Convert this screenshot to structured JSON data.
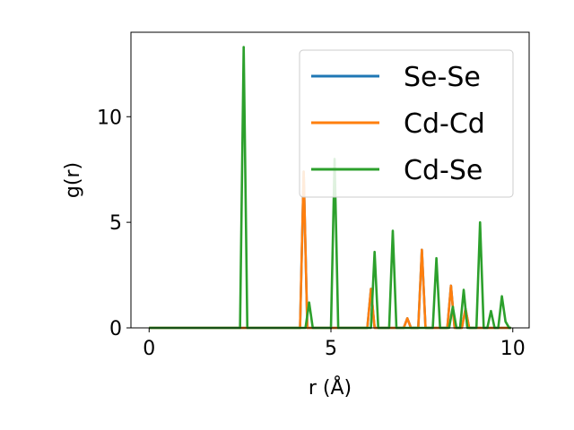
{
  "chart_data": {
    "type": "line",
    "xlabel": "r (Å)",
    "ylabel": "g(r)",
    "xlim": [
      -0.5,
      10.45
    ],
    "ylim": [
      0,
      14
    ],
    "xticks": [
      0,
      5,
      10
    ],
    "yticks": [
      0,
      5,
      10
    ],
    "grid": false,
    "legend_position": "top-right",
    "series": [
      {
        "name": "Se-Se",
        "color": "#1f77b4",
        "x": [
          0,
          4.15,
          4.25,
          4.35,
          6.0,
          6.1,
          6.2,
          7.0,
          7.1,
          7.2,
          7.4,
          7.5,
          7.6,
          8.2,
          8.3,
          8.4,
          8.6,
          8.7,
          8.8,
          9.95
        ],
        "y": [
          0,
          0,
          7.4,
          0,
          0,
          1.85,
          0,
          0,
          0.45,
          0,
          0,
          3.7,
          0,
          0,
          2.0,
          0,
          0,
          0.9,
          0,
          0
        ]
      },
      {
        "name": "Cd-Cd",
        "color": "#ff7f0e",
        "x": [
          0,
          4.15,
          4.25,
          4.35,
          6.0,
          6.1,
          6.2,
          7.0,
          7.1,
          7.2,
          7.4,
          7.5,
          7.6,
          8.2,
          8.3,
          8.4,
          8.6,
          8.7,
          8.8,
          9.95
        ],
        "y": [
          0,
          0,
          7.4,
          0,
          0,
          1.85,
          0,
          0,
          0.45,
          0,
          0,
          3.7,
          0,
          0,
          2.0,
          0,
          0,
          0.9,
          0,
          0
        ]
      },
      {
        "name": "Cd-Se",
        "color": "#2ca02c",
        "x": [
          0,
          2.5,
          2.6,
          2.7,
          4.3,
          4.4,
          4.5,
          5.0,
          5.1,
          5.2,
          6.1,
          6.2,
          6.3,
          6.6,
          6.7,
          6.8,
          7.8,
          7.9,
          8.0,
          8.25,
          8.35,
          8.45,
          8.55,
          8.65,
          8.75,
          9.0,
          9.1,
          9.2,
          9.3,
          9.4,
          9.5,
          9.6,
          9.7,
          9.8,
          9.9,
          9.95
        ],
        "y": [
          0,
          0,
          13.3,
          0,
          0,
          1.2,
          0,
          0,
          8.0,
          0,
          0,
          3.6,
          0,
          0,
          4.6,
          0,
          0,
          3.3,
          0,
          0,
          1.0,
          0,
          0,
          1.8,
          0,
          0,
          5.0,
          0,
          0,
          0.8,
          0,
          0,
          1.5,
          0.3,
          0,
          0
        ]
      }
    ]
  }
}
